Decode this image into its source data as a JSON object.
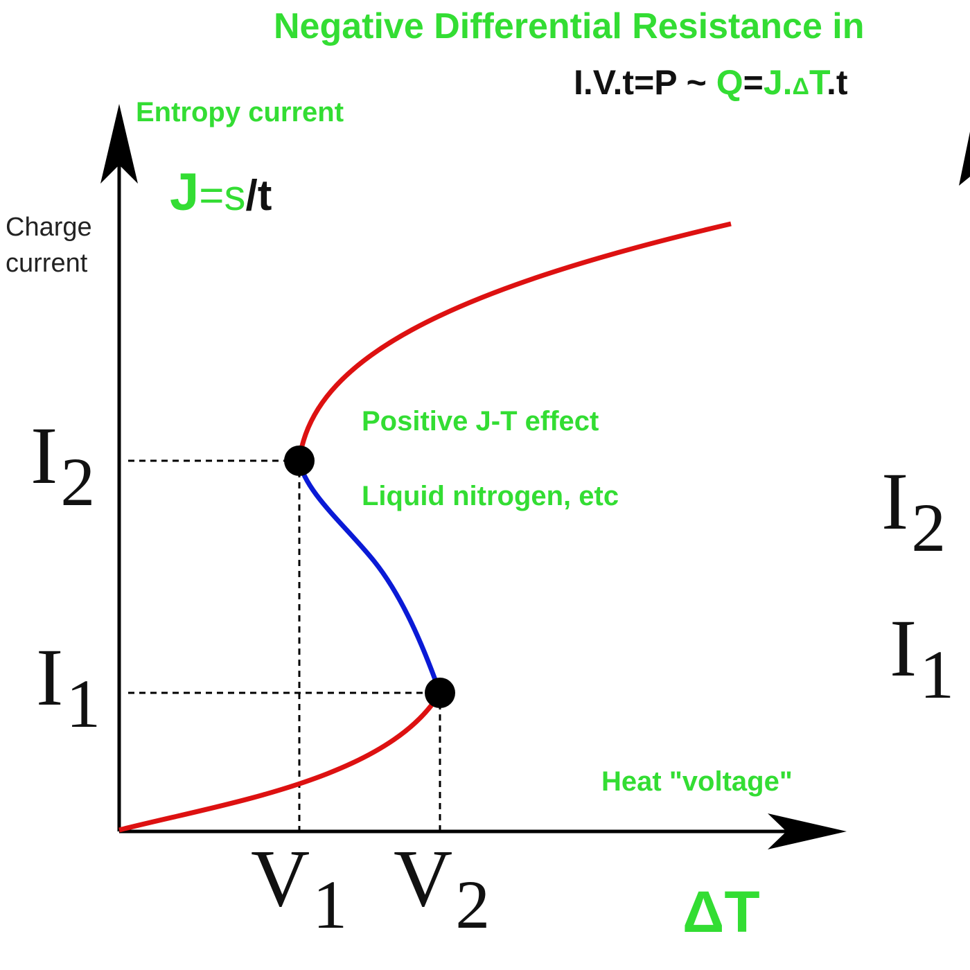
{
  "title": "Negative Differential Resistance in",
  "formula": {
    "prefix": "I.V.t=P ~ ",
    "q": "Q",
    "eq": "=",
    "j": "J.",
    "delta": "Δ",
    "tt": "T",
    "suffix": ".t"
  },
  "y_axis": {
    "top_label": "Entropy current",
    "label": "Charge current",
    "equation": {
      "j": "J",
      "eq": "=",
      "s": "s",
      "rest": "/t"
    }
  },
  "x_axis": {
    "label": "Heat \"voltage\"",
    "symbol": "ΔT"
  },
  "annotations": {
    "positive": "Positive J-T effect",
    "liquid": "Liquid nitrogen, etc"
  },
  "ticks": {
    "i2": {
      "base": "I",
      "sub": "2"
    },
    "i1": {
      "base": "I",
      "sub": "1"
    },
    "v1": {
      "base": "V",
      "sub": "1"
    },
    "v2": {
      "base": "V",
      "sub": "2"
    }
  },
  "colors": {
    "stable_branch": "#dd1111",
    "ndr_branch": "#0a1ad6",
    "labels": "#33dd33",
    "axes": "#000000"
  },
  "points": [
    "I2 at V1",
    "I1 at V2"
  ]
}
